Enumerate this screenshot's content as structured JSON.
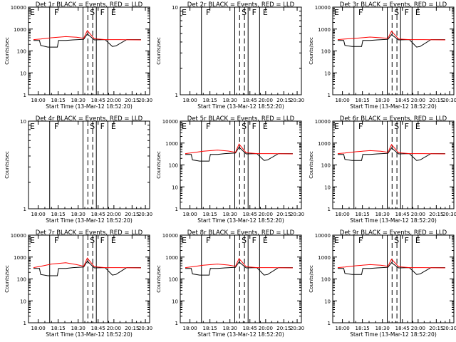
{
  "figure": {
    "start_time_label": "Start Time (13-Mar-12 18:52:20)",
    "ylabel": "Counts/sec",
    "series_colors": {
      "events": "#000000",
      "lld": "#ff0000"
    }
  },
  "chart_data": [
    {
      "type": "line",
      "title": "Det 1r BLACK = Events, RED = LLD",
      "ylabel": "Counts/sec",
      "xlabel": "Start Time (13-Mar-12 18:52:20)",
      "x_ticks": [
        "18:00",
        "18:15",
        "18:30",
        "18:45",
        "20:00",
        "20:15",
        "20:30"
      ],
      "y_ticks": [
        "1",
        "10",
        "100",
        "1000",
        "10000"
      ],
      "y_scale": "log",
      "ylim": [
        1,
        10000
      ],
      "markers": [
        "E",
        "F",
        "S",
        "F",
        "E"
      ],
      "series": [
        {
          "x": [
            18.0,
            18.083,
            18.1,
            18.2,
            18.333,
            18.35,
            18.45,
            18.55,
            18.7,
            18.75,
            18.85,
            19.0,
            19.1,
            19.15,
            19.3,
            19.5
          ],
          "values": [
            300,
            300,
            180,
            150,
            150,
            300,
            300,
            320,
            340,
            600,
            320,
            330,
            160,
            170,
            330,
            330
          ]
        },
        {
          "x": [
            18.0,
            18.1,
            18.25,
            18.45,
            18.6,
            18.7,
            18.75,
            18.85,
            19.0,
            19.2,
            19.5
          ],
          "values": [
            330,
            350,
            400,
            450,
            420,
            380,
            850,
            360,
            330,
            330,
            320
          ]
        }
      ]
    },
    {
      "type": "line",
      "title": "Det 2r BLACK = Events, RED = LLD",
      "ylabel": "Counts/sec",
      "xlabel": "Start Time (13-Mar-12 18:52:20)",
      "x_ticks": [
        "18:00",
        "18:15",
        "18:30",
        "18:45",
        "20:00",
        "20:15",
        "20:30"
      ],
      "y_ticks": [
        "1",
        "10"
      ],
      "y_scale": "log",
      "ylim": [
        1,
        10
      ],
      "markers": [
        "E",
        "F",
        "S",
        "F",
        "E"
      ],
      "series": []
    },
    {
      "type": "line",
      "title": "Det 3r BLACK = Events, RED = LLD",
      "ylabel": "Counts/sec",
      "xlabel": "Start Time (13-Mar-12 18:52:20)",
      "x_ticks": [
        "18:00",
        "18:15",
        "18:30",
        "18:45",
        "20:00",
        "20:15",
        "20:30"
      ],
      "y_ticks": [
        "1",
        "10",
        "100",
        "1000",
        "10000"
      ],
      "y_scale": "log",
      "ylim": [
        1,
        10000
      ],
      "markers": [
        "E",
        "F",
        "S",
        "F",
        "E"
      ],
      "series": [
        {
          "x": [
            18.0,
            18.083,
            18.1,
            18.2,
            18.333,
            18.35,
            18.45,
            18.55,
            18.7,
            18.75,
            18.85,
            19.0,
            19.1,
            19.15,
            19.3,
            19.5
          ],
          "values": [
            300,
            300,
            180,
            160,
            160,
            300,
            300,
            320,
            340,
            550,
            320,
            330,
            150,
            160,
            330,
            330
          ]
        },
        {
          "x": [
            18.0,
            18.1,
            18.25,
            18.45,
            18.6,
            18.7,
            18.75,
            18.85,
            19.0,
            19.2,
            19.5
          ],
          "values": [
            330,
            350,
            380,
            430,
            400,
            380,
            800,
            350,
            330,
            330,
            320
          ]
        }
      ]
    },
    {
      "type": "line",
      "title": "Det 4r BLACK = Events, RED = LLD",
      "ylabel": "Counts/sec",
      "xlabel": "Start Time (13-Mar-12 18:52:20)",
      "x_ticks": [
        "18:00",
        "18:15",
        "18:30",
        "18:45",
        "20:00",
        "20:15",
        "20:30"
      ],
      "y_ticks": [
        "1",
        "10"
      ],
      "y_scale": "log",
      "ylim": [
        1,
        10
      ],
      "markers": [
        "E",
        "F",
        "S",
        "F",
        "E"
      ],
      "series": []
    },
    {
      "type": "line",
      "title": "Det 5r BLACK = Events, RED = LLD",
      "ylabel": "Counts/sec",
      "xlabel": "Start Time (13-Mar-12 18:52:20)",
      "x_ticks": [
        "18:00",
        "18:15",
        "18:30",
        "18:45",
        "20:00",
        "20:15",
        "20:30"
      ],
      "y_ticks": [
        "1",
        "10",
        "100",
        "1000",
        "10000"
      ],
      "y_scale": "log",
      "ylim": [
        1,
        10000
      ],
      "markers": [
        "E",
        "F",
        "S",
        "F",
        "E"
      ],
      "series": [
        {
          "x": [
            18.0,
            18.083,
            18.1,
            18.2,
            18.333,
            18.35,
            18.45,
            18.55,
            18.7,
            18.75,
            18.85,
            19.0,
            19.1,
            19.15,
            19.3,
            19.5
          ],
          "values": [
            300,
            300,
            170,
            150,
            150,
            300,
            300,
            330,
            350,
            650,
            320,
            330,
            160,
            170,
            330,
            330
          ]
        },
        {
          "x": [
            18.0,
            18.1,
            18.25,
            18.45,
            18.6,
            18.7,
            18.75,
            18.85,
            19.0,
            19.2,
            19.5
          ],
          "values": [
            330,
            360,
            420,
            480,
            430,
            380,
            900,
            360,
            330,
            330,
            320
          ]
        }
      ]
    },
    {
      "type": "line",
      "title": "Det 6r BLACK = Events, RED = LLD",
      "ylabel": "Counts/sec",
      "xlabel": "Start Time (13-Mar-12 18:52:20)",
      "x_ticks": [
        "18:00",
        "18:15",
        "18:30",
        "18:45",
        "20:00",
        "20:15",
        "20:30"
      ],
      "y_ticks": [
        "1",
        "10",
        "100",
        "1000",
        "10000"
      ],
      "y_scale": "log",
      "ylim": [
        1,
        10000
      ],
      "markers": [
        "E",
        "F",
        "S",
        "F",
        "E"
      ],
      "series": [
        {
          "x": [
            18.0,
            18.083,
            18.1,
            18.2,
            18.333,
            18.35,
            18.45,
            18.55,
            18.7,
            18.75,
            18.85,
            19.0,
            19.1,
            19.15,
            19.3,
            19.5
          ],
          "values": [
            300,
            300,
            180,
            160,
            160,
            300,
            300,
            320,
            340,
            600,
            320,
            330,
            160,
            170,
            330,
            330
          ]
        },
        {
          "x": [
            18.0,
            18.1,
            18.25,
            18.45,
            18.6,
            18.7,
            18.75,
            18.85,
            19.0,
            19.2,
            19.5
          ],
          "values": [
            330,
            350,
            400,
            450,
            420,
            380,
            850,
            360,
            330,
            330,
            320
          ]
        }
      ]
    },
    {
      "type": "line",
      "title": "Det 7r BLACK = Events, RED = LLD",
      "ylabel": "Counts/sec",
      "xlabel": "Start Time (13-Mar-12 18:52:20)",
      "x_ticks": [
        "18:00",
        "18:15",
        "18:30",
        "18:45",
        "20:00",
        "20:15",
        "20:30"
      ],
      "y_ticks": [
        "1",
        "10",
        "100",
        "1000",
        "10000"
      ],
      "y_scale": "log",
      "ylim": [
        1,
        10000
      ],
      "markers": [
        "E",
        "F",
        "S",
        "F",
        "E"
      ],
      "series": [
        {
          "x": [
            18.0,
            18.083,
            18.1,
            18.2,
            18.333,
            18.35,
            18.45,
            18.55,
            18.7,
            18.75,
            18.85,
            19.0,
            19.1,
            19.15,
            19.3,
            19.5
          ],
          "values": [
            300,
            300,
            160,
            140,
            140,
            300,
            300,
            330,
            350,
            650,
            320,
            330,
            150,
            160,
            330,
            330
          ]
        },
        {
          "x": [
            18.0,
            18.1,
            18.25,
            18.45,
            18.6,
            18.7,
            18.75,
            18.85,
            19.0,
            19.2,
            19.5
          ],
          "values": [
            330,
            380,
            480,
            550,
            450,
            380,
            900,
            360,
            330,
            330,
            320
          ]
        }
      ]
    },
    {
      "type": "line",
      "title": "Det 8r BLACK = Events, RED = LLD",
      "ylabel": "Counts/sec",
      "xlabel": "Start Time (13-Mar-12 18:52:20)",
      "x_ticks": [
        "18:00",
        "18:15",
        "18:30",
        "18:45",
        "20:00",
        "20:15",
        "20:30"
      ],
      "y_ticks": [
        "1",
        "10",
        "100",
        "1000",
        "10000"
      ],
      "y_scale": "log",
      "ylim": [
        1,
        10000
      ],
      "markers": [
        "E",
        "F",
        "S",
        "F",
        "E"
      ],
      "series": [
        {
          "x": [
            18.0,
            18.083,
            18.1,
            18.2,
            18.333,
            18.35,
            18.45,
            18.55,
            18.7,
            18.75,
            18.85,
            19.0,
            19.1,
            19.15,
            19.3,
            19.5
          ],
          "values": [
            300,
            300,
            170,
            150,
            150,
            300,
            300,
            320,
            340,
            600,
            320,
            330,
            150,
            160,
            330,
            330
          ]
        },
        {
          "x": [
            18.0,
            18.1,
            18.25,
            18.45,
            18.6,
            18.7,
            18.75,
            18.85,
            19.0,
            19.2,
            19.5
          ],
          "values": [
            330,
            360,
            420,
            480,
            430,
            380,
            850,
            360,
            330,
            330,
            320
          ]
        }
      ]
    },
    {
      "type": "line",
      "title": "Det 9r BLACK = Events, RED = LLD",
      "ylabel": "Counts/sec",
      "xlabel": "Start Time (13-Mar-12 18:52:20)",
      "x_ticks": [
        "18:00",
        "18:15",
        "18:30",
        "18:45",
        "20:00",
        "20:15",
        "20:30"
      ],
      "y_ticks": [
        "1",
        "10",
        "100",
        "1000",
        "10000"
      ],
      "y_scale": "log",
      "ylim": [
        1,
        10000
      ],
      "markers": [
        "E",
        "F",
        "S",
        "F",
        "E"
      ],
      "series": [
        {
          "x": [
            18.0,
            18.083,
            18.1,
            18.2,
            18.333,
            18.35,
            18.45,
            18.55,
            18.7,
            18.75,
            18.85,
            19.0,
            19.1,
            19.15,
            19.3,
            19.5
          ],
          "values": [
            300,
            300,
            180,
            160,
            160,
            300,
            300,
            320,
            340,
            550,
            320,
            330,
            160,
            170,
            330,
            330
          ]
        },
        {
          "x": [
            18.0,
            18.1,
            18.25,
            18.45,
            18.6,
            18.7,
            18.75,
            18.85,
            19.0,
            19.2,
            19.5
          ],
          "values": [
            330,
            350,
            400,
            450,
            420,
            380,
            800,
            360,
            330,
            330,
            320
          ]
        }
      ]
    }
  ]
}
